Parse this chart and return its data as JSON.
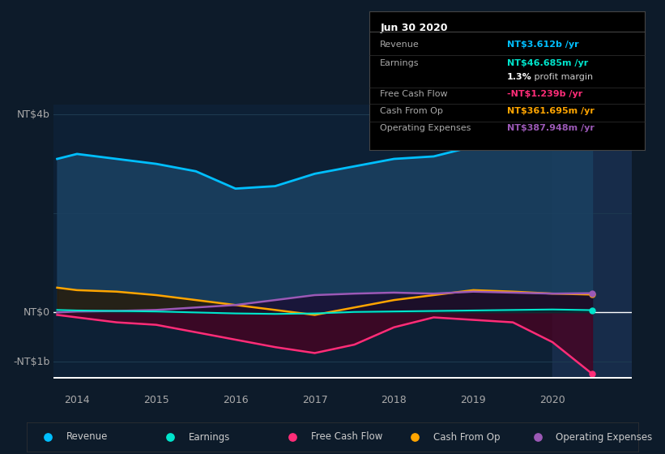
{
  "bg_color": "#0d1b2a",
  "plot_bg_color": "#0d2035",
  "highlight_color": "#1a2d45",
  "grid_color": "#1e3a50",
  "zero_line_color": "#ffffff",
  "xlabel_ticks": [
    2014,
    2015,
    2016,
    2017,
    2018,
    2019,
    2020
  ],
  "xlim": [
    2013.7,
    2021.0
  ],
  "ylim": [
    -1300000000.0,
    4200000000.0
  ],
  "series": {
    "revenue": {
      "color": "#00bfff",
      "fill_color": "#1a4060",
      "label": "Revenue",
      "x": [
        2013.75,
        2014.0,
        2014.5,
        2015.0,
        2015.5,
        2016.0,
        2016.5,
        2017.0,
        2017.5,
        2018.0,
        2018.5,
        2019.0,
        2019.5,
        2020.0,
        2020.5
      ],
      "y": [
        3100000000,
        3200000000,
        3100000000,
        3000000000,
        2850000000,
        2500000000,
        2550000000,
        2800000000,
        2950000000,
        3100000000,
        3150000000,
        3350000000,
        3300000000,
        3350000000,
        3612000000
      ]
    },
    "earnings": {
      "color": "#00e5cc",
      "fill_color": "#003030",
      "label": "Earnings",
      "x": [
        2013.75,
        2014.0,
        2014.5,
        2015.0,
        2015.5,
        2016.0,
        2016.5,
        2017.0,
        2017.5,
        2018.0,
        2018.5,
        2019.0,
        2019.5,
        2020.0,
        2020.5
      ],
      "y": [
        50000000,
        40000000,
        30000000,
        20000000,
        0,
        -20000000,
        -30000000,
        -20000000,
        10000000,
        20000000,
        30000000,
        40000000,
        50000000,
        60000000,
        46700000
      ]
    },
    "free_cash_flow": {
      "color": "#ff2d78",
      "fill_color": "#4a0020",
      "label": "Free Cash Flow",
      "x": [
        2013.75,
        2014.0,
        2014.5,
        2015.0,
        2015.5,
        2016.0,
        2016.5,
        2017.0,
        2017.5,
        2018.0,
        2018.5,
        2019.0,
        2019.5,
        2020.0,
        2020.5
      ],
      "y": [
        -50000000,
        -100000000,
        -200000000,
        -250000000,
        -400000000,
        -550000000,
        -700000000,
        -820000000,
        -650000000,
        -300000000,
        -100000000,
        -150000000,
        -200000000,
        -600000000,
        -1239000000
      ]
    },
    "cash_from_op": {
      "color": "#ffa500",
      "fill_color": "#2a1800",
      "label": "Cash From Op",
      "x": [
        2013.75,
        2014.0,
        2014.5,
        2015.0,
        2015.5,
        2016.0,
        2016.5,
        2017.0,
        2017.5,
        2018.0,
        2018.5,
        2019.0,
        2019.5,
        2020.0,
        2020.5
      ],
      "y": [
        500000000,
        450000000,
        420000000,
        350000000,
        250000000,
        150000000,
        50000000,
        -50000000,
        100000000,
        250000000,
        350000000,
        450000000,
        420000000,
        380000000,
        361695000
      ]
    },
    "operating_expenses": {
      "color": "#9b59b6",
      "fill_color": "#1a0a30",
      "label": "Operating Expenses",
      "x": [
        2013.75,
        2014.0,
        2014.5,
        2015.0,
        2015.5,
        2016.0,
        2016.5,
        2017.0,
        2017.5,
        2018.0,
        2018.5,
        2019.0,
        2019.5,
        2020.0,
        2020.5
      ],
      "y": [
        0,
        20000000,
        30000000,
        50000000,
        100000000,
        150000000,
        250000000,
        350000000,
        380000000,
        400000000,
        380000000,
        420000000,
        400000000,
        380000000,
        387948000
      ]
    }
  },
  "highlight_x_start": 2020.0,
  "tooltip": {
    "title": "Jun 30 2020",
    "rows": [
      {
        "label": "Revenue",
        "value": "NT$3.612b /yr",
        "value_color": "#00bfff"
      },
      {
        "label": "Earnings",
        "value": "NT$46.685m /yr",
        "value_color": "#00e5cc"
      },
      {
        "label": "",
        "value": "1.3% profit margin",
        "value_color": "#ffffff",
        "bold_part": "1.3%"
      },
      {
        "label": "Free Cash Flow",
        "value": "-NT$1.239b /yr",
        "value_color": "#ff2d78"
      },
      {
        "label": "Cash From Op",
        "value": "NT$361.695m /yr",
        "value_color": "#ffa500"
      },
      {
        "label": "Operating Expenses",
        "value": "NT$387.948m /yr",
        "value_color": "#9b59b6"
      }
    ]
  },
  "legend": [
    {
      "label": "Revenue",
      "color": "#00bfff"
    },
    {
      "label": "Earnings",
      "color": "#00e5cc"
    },
    {
      "label": "Free Cash Flow",
      "color": "#ff2d78"
    },
    {
      "label": "Cash From Op",
      "color": "#ffa500"
    },
    {
      "label": "Operating Expenses",
      "color": "#9b59b6"
    }
  ]
}
